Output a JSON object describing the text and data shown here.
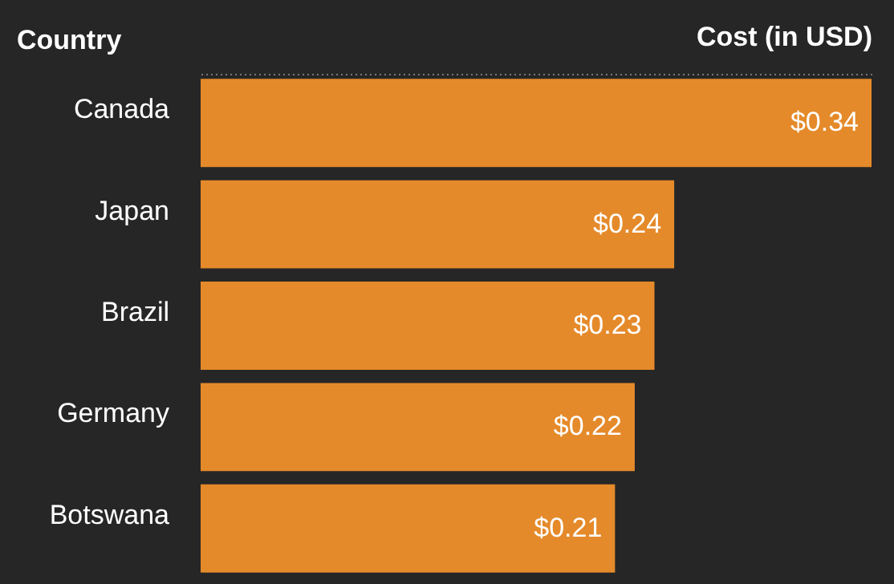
{
  "chart_data": {
    "type": "bar",
    "orientation": "horizontal",
    "xlabel": "Cost (in USD)",
    "ylabel": "Country",
    "categories": [
      "Canada",
      "Japan",
      "Brazil",
      "Germany",
      "Botswana"
    ],
    "values": [
      0.34,
      0.24,
      0.23,
      0.22,
      0.21
    ],
    "value_labels": [
      "$0.34",
      "$0.24",
      "$0.23",
      "$0.22",
      "$0.21"
    ],
    "color": "#e58a2a"
  }
}
